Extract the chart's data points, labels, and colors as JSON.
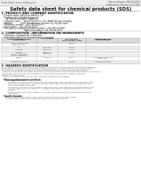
{
  "bg_color": "#f5f5f0",
  "page_bg": "#ffffff",
  "header_left": "Product Name: Lithium Ion Battery Cell",
  "header_right_line1": "Reference Number: SBN-049-20619",
  "header_right_line2": "Establishment / Revision: Dec.7,2018",
  "title": "Safety data sheet for chemical products (SDS)",
  "section1_title": "1. PRODUCT AND COMPANY IDENTIFICATION",
  "section1_lines": [
    "  • Product name: Lithium Ion Battery Cell",
    "  • Product code: Cylindrical-type cell",
    "       (AT 86550, INI 86550, INI 86554)",
    "  • Company name:    Sanyo Electric Co., Ltd., Mobile Energy Company",
    "  • Address:            2001, Kamishinden, Sumoto-City, Hyogo, Japan",
    "  • Telephone number:   +81-799-26-4111",
    "  • Fax number:   +81-799-26-4120",
    "  • Emergency telephone number (daytime): +81-799-26-3942",
    "                                    (Night and holiday): +81-799-26-4120"
  ],
  "section2_title": "2. COMPOSITION / INFORMATION ON INGREDIENTS",
  "section2_intro": "  • Substance or preparation: Preparation",
  "section2_sub": "  • Information about the chemical nature of product:",
  "table_col_headers": [
    "Common chemical name /\nBrand name",
    "CAS number",
    "Concentration /\nConcentration range",
    "Classification and\nhazard labeling"
  ],
  "table_rows": [
    [
      "Lithium cobalt oxide\n(LiMn₂CoO₂₂-O)",
      "-",
      "30-60%",
      "-"
    ],
    [
      "Iron",
      "26/28-80-5",
      "10-30%",
      "-"
    ],
    [
      "Aluminum",
      "7429-90-5",
      "2-6%",
      "-"
    ],
    [
      "Graphite\n(Metal in graphite-1)\n(NTBN in graphite-1)",
      "7782-42-5\n7782-44-2",
      "10-20%",
      "-"
    ],
    [
      "Copper",
      "7440-50-8",
      "5-15%",
      "Sensitization of the skin\ngroup No.2"
    ],
    [
      "Organic electrolyte",
      "-",
      "10-20%",
      "Inflammable liquid"
    ]
  ],
  "section3_title": "3. HAZARDS IDENTIFICATION",
  "section3_para1": [
    "For the battery cell, chemical substances are stored in a hermetically sealed metal case, designed to withstand",
    "temperatures in electrolyte-service conditions during normal use. As a result, during normal use, there is no",
    "physical danger of ignition or explosion and thermodynamics danger of hazardous materials leakage.",
    "  However, if exposed to a fire, added mechanical shock, decomposed, when electrolyte-stimulation of fire may occur,",
    "As gas inside cannot be expelled. The battery cell case will be breached at the extreme, hazardous",
    "materials may be released.",
    "  Moreover, if heated strongly by the surrounding fire, solid gas may be emitted."
  ],
  "section3_bullet1_title": "  • Most important hazard and effects:",
  "section3_human": "       Human health effects:",
  "section3_human_lines": [
    "            Inhalation: The release of the electrolyte has an anesthesia action and stimulates in respiratory tract.",
    "            Skin contact: The release of the electrolyte stimulates a skin. The electrolyte skin contact causes a",
    "            sore and stimulation on the skin.",
    "            Eye contact: The release of the electrolyte stimulates eyes. The electrolyte eye contact causes a sore",
    "            and stimulation on the eye. Especially, a substance that causes a strong inflammation of the eye is",
    "            included.",
    "            Environmental effects: Since a battery cell remains in the environment, do not throw out it into the",
    "            environment."
  ],
  "section3_bullet2_title": "  • Specific hazards:",
  "section3_specific_lines": [
    "       If the electrolyte contacts with water, it will generate detrimental hydrogen fluoride.",
    "       Since the liquid electrolyte is inflammable liquid, do not bring close to fire."
  ]
}
